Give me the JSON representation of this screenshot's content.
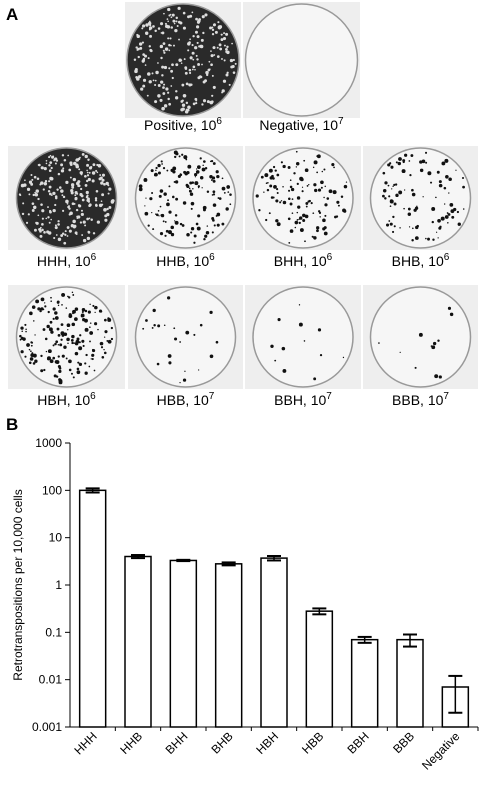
{
  "panel_a": {
    "label": "A",
    "plates": [
      {
        "label": "Positive, 10",
        "exp": "6"
      },
      {
        "label": "Negative, 10",
        "exp": "7"
      },
      {
        "label": "HHH, 10",
        "exp": "6"
      },
      {
        "label": "HHB, 10",
        "exp": "6"
      },
      {
        "label": "BHH, 10",
        "exp": "6"
      },
      {
        "label": "BHB, 10",
        "exp": "6"
      },
      {
        "label": "HBH, 10",
        "exp": "6"
      },
      {
        "label": "HBB, 10",
        "exp": "7"
      },
      {
        "label": "BBH, 10",
        "exp": "7"
      },
      {
        "label": "BBB, 10",
        "exp": "7"
      }
    ]
  },
  "chart_data": {
    "type": "bar",
    "panel_label": "B",
    "y_label": "Retrotranspositions per 10,000 cells",
    "categories": [
      "HHH",
      "HHB",
      "BHH",
      "BHB",
      "HBH",
      "HBB",
      "BBH",
      "BBB",
      "Negative"
    ],
    "values": [
      100,
      4,
      3.3,
      2.8,
      3.7,
      0.28,
      0.07,
      0.07,
      0.007
    ],
    "errors": [
      10,
      0.3,
      0.1,
      0.2,
      0.4,
      0.04,
      0.01,
      0.02,
      0.005
    ],
    "color": "#ffffff",
    "log_scale": true,
    "ylim": [
      0.001,
      1000
    ],
    "yticks": [
      0.001,
      0.01,
      0.1,
      1,
      10,
      100,
      1000
    ]
  }
}
